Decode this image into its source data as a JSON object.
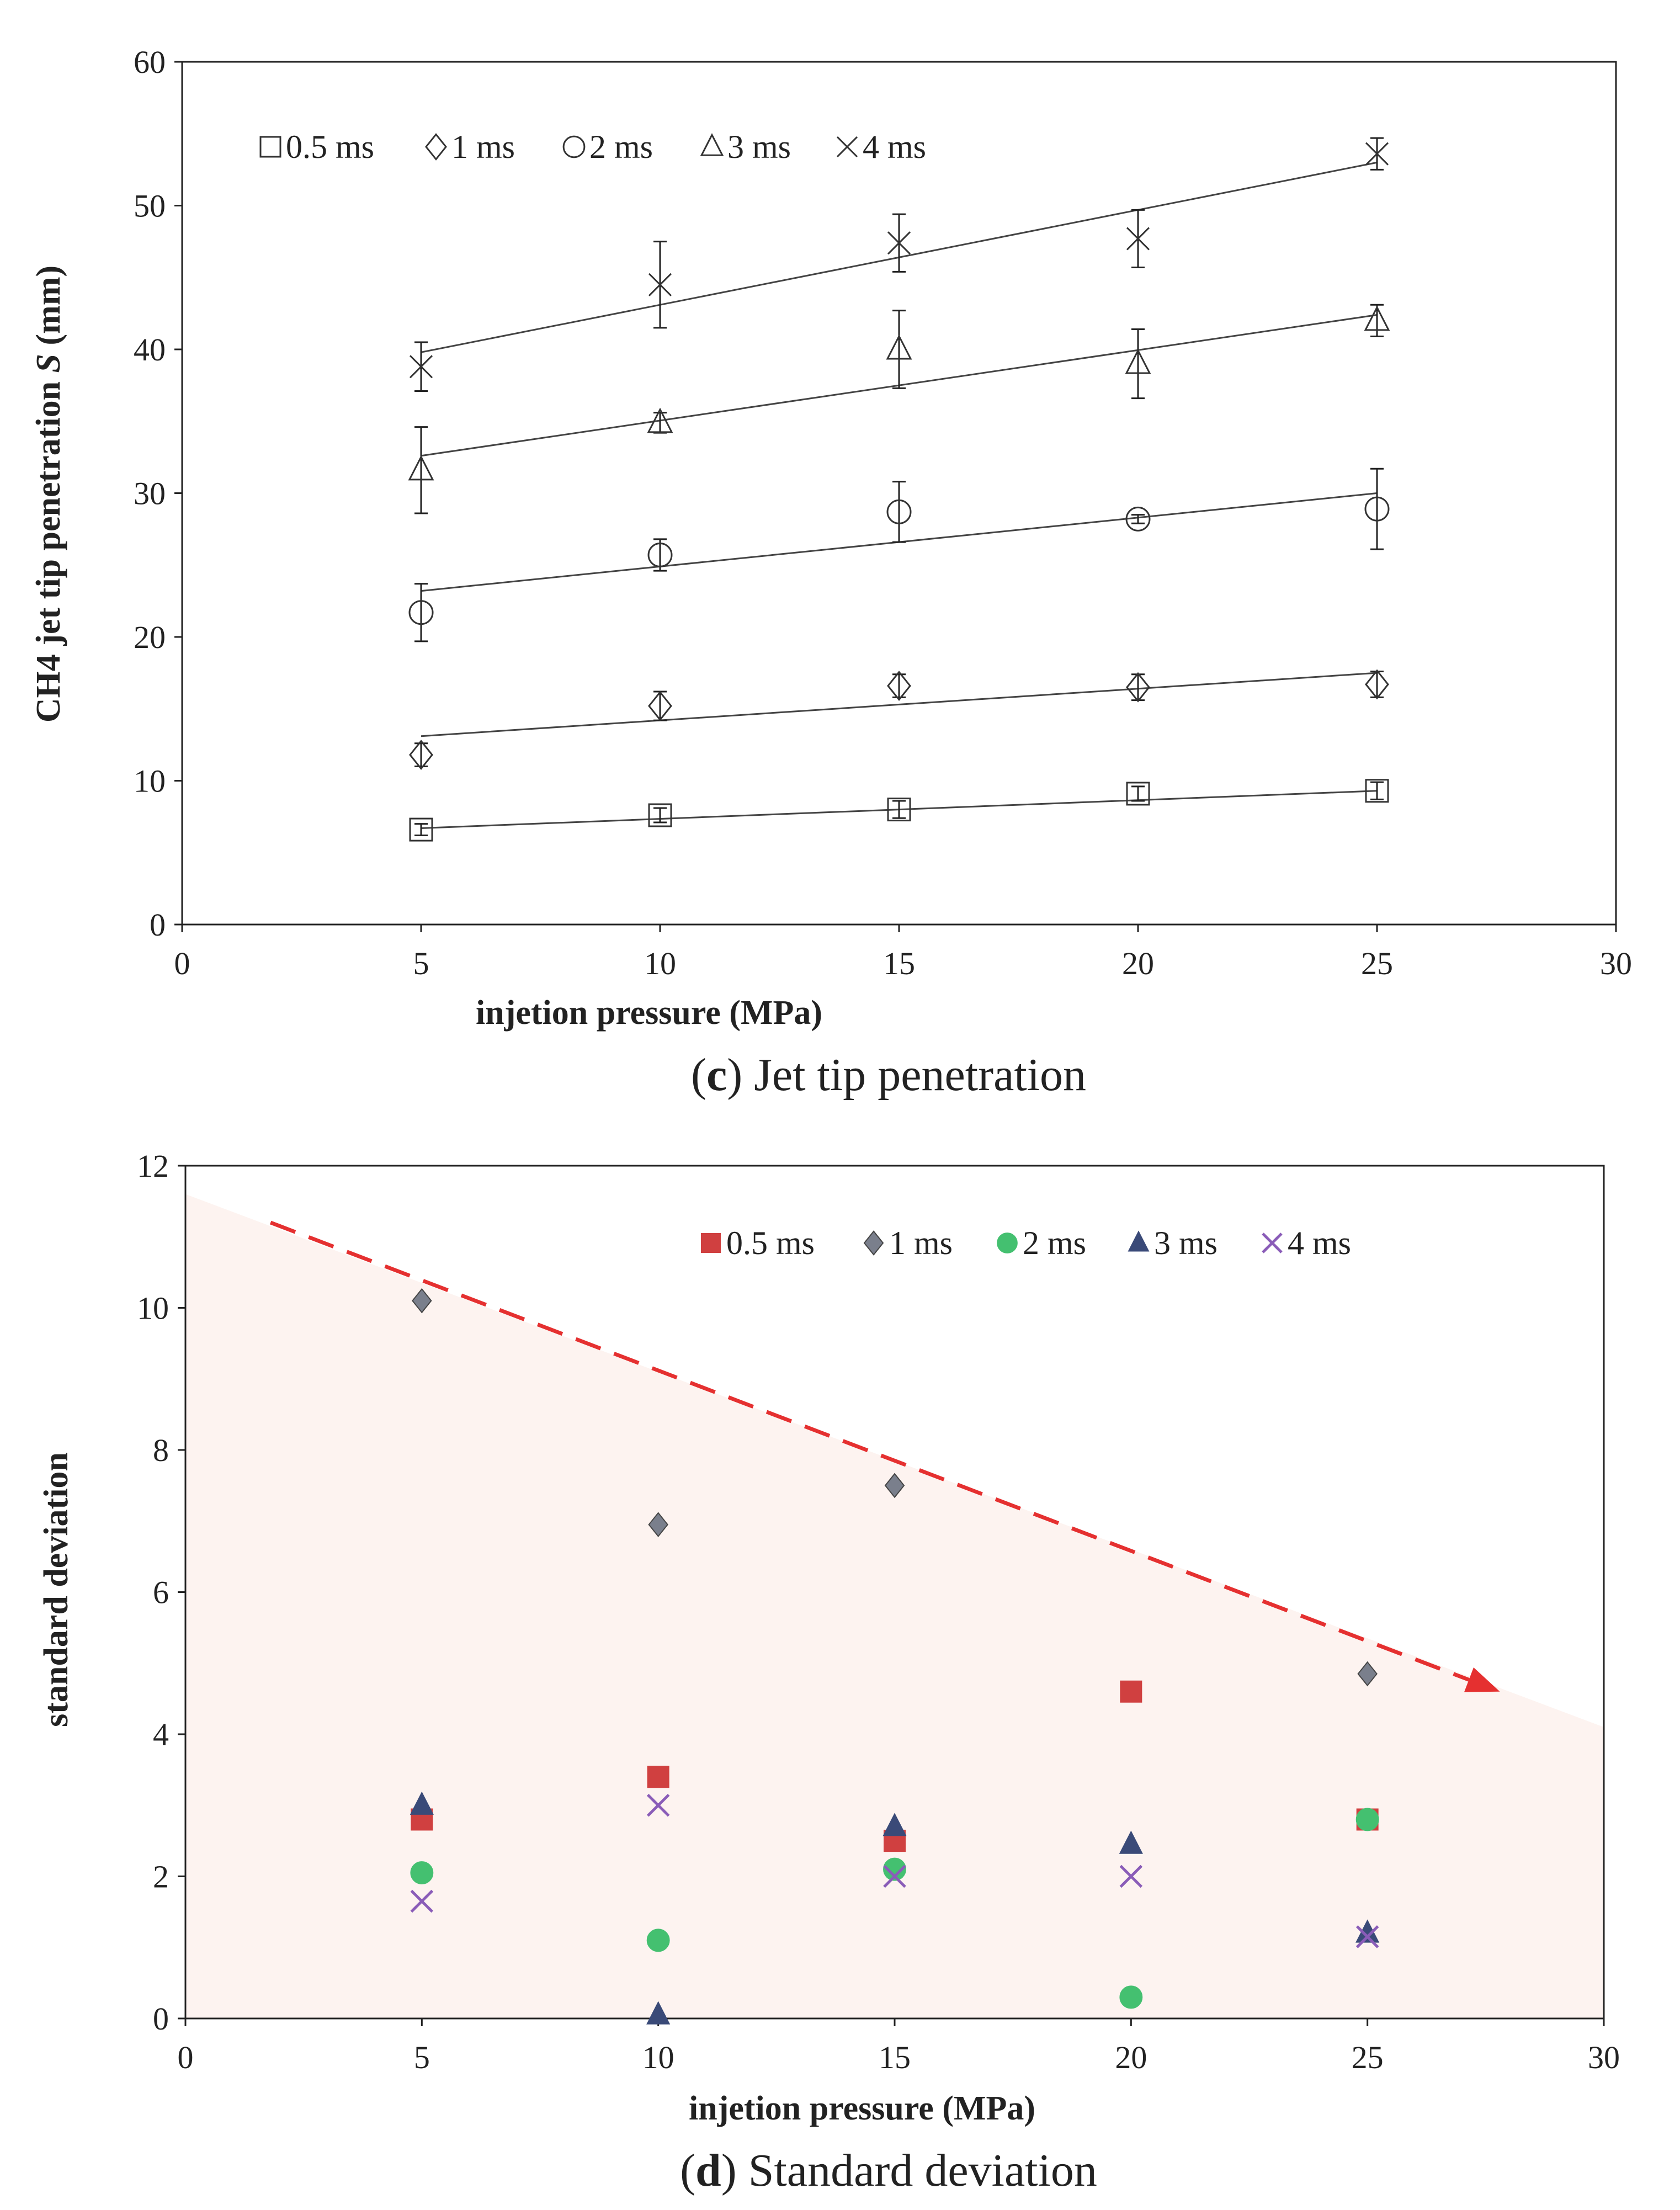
{
  "chart_data": [
    {
      "type": "scatter",
      "id": "c",
      "caption_letter": "c",
      "caption_text": " Jet tip penetration",
      "xlabel": "injetion pressure (MPa)",
      "ylabel": "CH4 jet tip penetration S (mm)",
      "ylabel_main": "CH4 jet tip penetration ",
      "ylabel_italic": "S",
      "ylabel_unit": " (mm)",
      "xlim": [
        0,
        30
      ],
      "ylim": [
        0,
        60
      ],
      "xticks": [
        0,
        5,
        10,
        15,
        20,
        25,
        30
      ],
      "yticks": [
        0,
        10,
        20,
        30,
        40,
        50,
        60
      ],
      "legend_position": "top-left",
      "x": [
        5,
        10,
        15,
        20,
        25
      ],
      "series": [
        {
          "name": "0.5 ms",
          "marker": "square",
          "values": [
            6.6,
            7.6,
            8.0,
            9.1,
            9.3
          ],
          "err": [
            0.4,
            0.5,
            0.6,
            0.5,
            0.6
          ],
          "fit": [
            6.7,
            9.3
          ]
        },
        {
          "name": "1 ms",
          "marker": "diamond",
          "values": [
            11.8,
            15.2,
            16.6,
            16.5,
            16.7
          ],
          "err": [
            0.8,
            1.0,
            0.8,
            0.9,
            0.9
          ],
          "fit": [
            13.1,
            17.5
          ]
        },
        {
          "name": "2 ms",
          "marker": "circle",
          "values": [
            21.7,
            25.7,
            28.7,
            28.2,
            28.9
          ],
          "err": [
            2.0,
            1.1,
            2.1,
            0.3,
            2.8
          ],
          "fit": [
            23.2,
            30.0
          ]
        },
        {
          "name": "3 ms",
          "marker": "triangle",
          "values": [
            31.6,
            34.9,
            40.0,
            39.0,
            42.0
          ],
          "err": [
            3.0,
            0.7,
            2.7,
            2.4,
            1.1
          ],
          "fit": [
            32.6,
            42.4
          ]
        },
        {
          "name": "4 ms",
          "marker": "x",
          "values": [
            38.8,
            44.5,
            47.4,
            47.7,
            53.6
          ],
          "err": [
            1.7,
            3.0,
            2.0,
            2.0,
            1.1
          ],
          "fit": [
            39.8,
            53.0
          ]
        }
      ]
    },
    {
      "type": "scatter",
      "id": "d",
      "caption_letter": "d",
      "caption_text": " Standard deviation",
      "xlabel": "injetion pressure (MPa)",
      "ylabel": "standard deviation",
      "xlim": [
        0,
        30
      ],
      "ylim": [
        0,
        12
      ],
      "xticks": [
        0,
        5,
        10,
        15,
        20,
        25,
        30
      ],
      "yticks": [
        0,
        2,
        4,
        6,
        8,
        10,
        12
      ],
      "legend_position": "top-right",
      "x": [
        5,
        10,
        15,
        20,
        25
      ],
      "series": [
        {
          "name": "0.5 ms",
          "marker": "square",
          "color": "#d04040",
          "values": [
            2.8,
            3.4,
            2.5,
            4.6,
            2.8
          ]
        },
        {
          "name": "1 ms",
          "marker": "diamond",
          "color": "#7a7f8c",
          "values": [
            10.1,
            6.95,
            7.5,
            null,
            4.85
          ]
        },
        {
          "name": "2 ms",
          "marker": "circle",
          "color": "#44c070",
          "values": [
            2.05,
            1.1,
            2.1,
            0.3,
            2.8
          ]
        },
        {
          "name": "3 ms",
          "marker": "triangle",
          "color": "#3a4a78",
          "values": [
            3.0,
            0.05,
            2.7,
            2.45,
            1.2
          ]
        },
        {
          "name": "4 ms",
          "marker": "x",
          "color": "#8a5cb8",
          "values": [
            1.65,
            3.0,
            2.0,
            2.0,
            1.15
          ]
        }
      ],
      "trend_arrow": {
        "from": [
          1.8,
          11.2
        ],
        "to": [
          27.8,
          4.6
        ],
        "color": "#e53030"
      },
      "shaded_region": {
        "color": "#fdf3f0",
        "upper_left_y": 11.6,
        "upper_right_y": 4.1
      }
    }
  ]
}
